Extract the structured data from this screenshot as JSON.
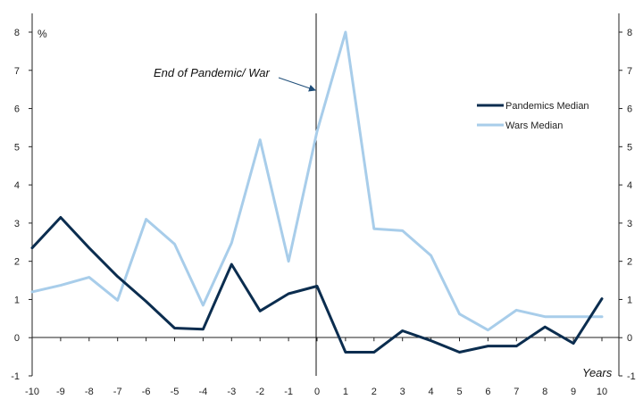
{
  "chart_data": {
    "type": "line",
    "x": [
      -10,
      -9,
      -8,
      -7,
      -6,
      -5,
      -4,
      -3,
      -2,
      -1,
      0,
      1,
      2,
      3,
      4,
      5,
      6,
      7,
      8,
      9,
      10
    ],
    "xlabel": "Years",
    "ylabel": "%",
    "ylim": [
      -1,
      8
    ],
    "yticks": [
      -1,
      0,
      1,
      2,
      3,
      4,
      5,
      6,
      7,
      8
    ],
    "secondary_yaxis": true,
    "grid": false,
    "legend_position": "right",
    "series": [
      {
        "name": "Pandemics Median",
        "color": "#0b2d4f",
        "values": [
          2.35,
          3.15,
          2.35,
          1.6,
          0.95,
          0.25,
          0.22,
          1.92,
          0.7,
          1.15,
          1.35,
          -0.38,
          -0.38,
          0.18,
          -0.08,
          -0.38,
          -0.22,
          -0.22,
          0.28,
          -0.15,
          1.02
        ]
      },
      {
        "name": "Wars Median",
        "color": "#a8cdea",
        "values": [
          1.2,
          1.37,
          1.58,
          0.98,
          3.1,
          2.45,
          0.85,
          2.48,
          5.18,
          2.0,
          5.4,
          8.0,
          2.85,
          2.8,
          2.15,
          0.62,
          0.2,
          0.72,
          0.55,
          0.55,
          0.55
        ]
      }
    ],
    "annotations": [
      {
        "text": "End of Pandemic/ War",
        "points_to_x": 0
      }
    ],
    "vertical_line_at_x": 0
  }
}
